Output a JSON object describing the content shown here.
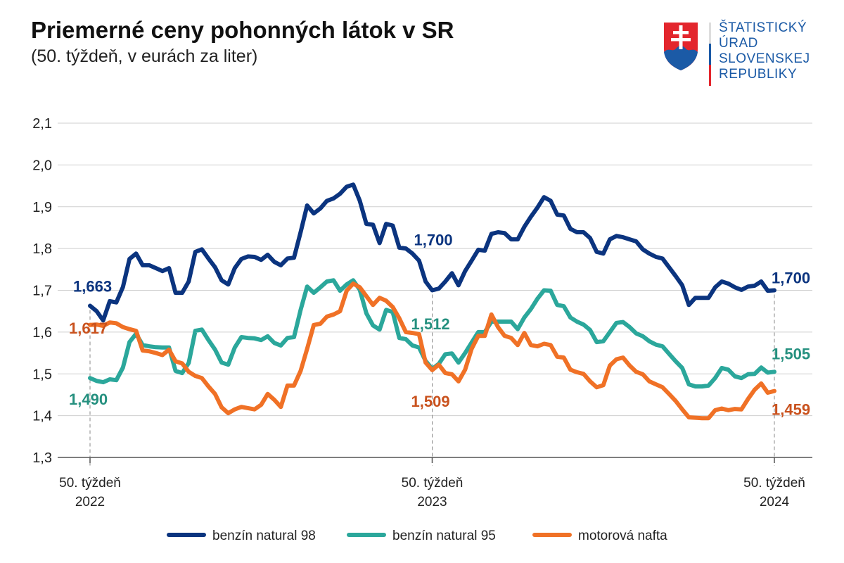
{
  "header": {
    "title": "Priemerné ceny pohonných látok v SR",
    "subtitle": "(50. týždeň, v eurách za liter)"
  },
  "logo": {
    "lines": [
      "ŠTATISTICKÝ",
      "ÚRAD",
      "SLOVENSKEJ",
      "REPUBLIKY"
    ],
    "colors": {
      "text": "#1b5aa6",
      "shield_red": "#e3262d",
      "shield_blue": "#1b5aa6"
    }
  },
  "chart_data": {
    "type": "line",
    "title": "Priemerné ceny pohonných látok v SR",
    "subtitle": "(50. týždeň, v eurách za liter)",
    "x_unit": "week",
    "x_start": "50. týždeň 2022",
    "x_end": "50. týždeň 2024",
    "x_ticks": [
      {
        "week_index": 0,
        "line1": "50. týždeň",
        "line2": "2022"
      },
      {
        "week_index": 52,
        "line1": "50. týždeň",
        "line2": "2023"
      },
      {
        "week_index": 104,
        "line1": "50. týždeň",
        "line2": "2024"
      }
    ],
    "ylim": [
      1.3,
      2.1
    ],
    "y_ticks": [
      "1,3",
      "1,4",
      "1,5",
      "1,6",
      "1,7",
      "1,8",
      "1,9",
      "2,0",
      "2,1"
    ],
    "grid": true,
    "legend_position": "bottom",
    "series": [
      {
        "name": "benzín natural 98",
        "color": "#0b347f",
        "label_color": "#0b347f",
        "annotations": [
          {
            "week_index": 0,
            "text": "1,663"
          },
          {
            "week_index": 52,
            "text": "1,700"
          },
          {
            "week_index": 104,
            "text": "1,700"
          }
        ],
        "values": [
          1.663,
          1.65,
          1.628,
          1.674,
          1.671,
          1.708,
          1.775,
          1.788,
          1.76,
          1.76,
          1.753,
          1.746,
          1.753,
          1.694,
          1.694,
          1.721,
          1.792,
          1.798,
          1.776,
          1.755,
          1.724,
          1.714,
          1.753,
          1.775,
          1.781,
          1.78,
          1.773,
          1.785,
          1.768,
          1.76,
          1.776,
          1.778,
          1.839,
          1.903,
          1.884,
          1.896,
          1.914,
          1.92,
          1.931,
          1.948,
          1.953,
          1.914,
          1.859,
          1.857,
          1.813,
          1.859,
          1.855,
          1.802,
          1.8,
          1.788,
          1.771,
          1.721,
          1.7,
          1.704,
          1.721,
          1.741,
          1.712,
          1.746,
          1.771,
          1.797,
          1.795,
          1.835,
          1.839,
          1.837,
          1.822,
          1.822,
          1.852,
          1.876,
          1.898,
          1.923,
          1.914,
          1.881,
          1.879,
          1.847,
          1.839,
          1.839,
          1.825,
          1.792,
          1.788,
          1.822,
          1.83,
          1.827,
          1.822,
          1.817,
          1.798,
          1.788,
          1.78,
          1.776,
          1.755,
          1.734,
          1.712,
          1.665,
          1.682,
          1.682,
          1.682,
          1.707,
          1.721,
          1.716,
          1.707,
          1.701,
          1.709,
          1.711,
          1.721,
          1.699,
          1.7
        ]
      },
      {
        "name": "benzín natural 95",
        "color": "#2ba79b",
        "label_color": "#25907f",
        "annotations": [
          {
            "week_index": 0,
            "text": "1,490"
          },
          {
            "week_index": 52,
            "text": "1,512"
          },
          {
            "week_index": 104,
            "text": "1,505"
          }
        ],
        "values": [
          1.49,
          1.483,
          1.48,
          1.487,
          1.485,
          1.515,
          1.576,
          1.596,
          1.569,
          1.566,
          1.564,
          1.563,
          1.563,
          1.507,
          1.502,
          1.526,
          1.603,
          1.606,
          1.581,
          1.558,
          1.527,
          1.522,
          1.563,
          1.588,
          1.586,
          1.585,
          1.581,
          1.59,
          1.574,
          1.568,
          1.586,
          1.588,
          1.653,
          1.709,
          1.694,
          1.707,
          1.721,
          1.724,
          1.699,
          1.714,
          1.724,
          1.701,
          1.645,
          1.616,
          1.606,
          1.653,
          1.648,
          1.586,
          1.583,
          1.568,
          1.563,
          1.531,
          1.512,
          1.524,
          1.547,
          1.549,
          1.527,
          1.55,
          1.575,
          1.6,
          1.6,
          1.625,
          1.625,
          1.625,
          1.625,
          1.607,
          1.635,
          1.655,
          1.68,
          1.7,
          1.699,
          1.665,
          1.662,
          1.635,
          1.625,
          1.618,
          1.605,
          1.576,
          1.578,
          1.6,
          1.622,
          1.624,
          1.612,
          1.597,
          1.59,
          1.578,
          1.57,
          1.566,
          1.548,
          1.53,
          1.514,
          1.475,
          1.47,
          1.47,
          1.472,
          1.49,
          1.514,
          1.51,
          1.494,
          1.49,
          1.499,
          1.5,
          1.515,
          1.503,
          1.505
        ]
      },
      {
        "name": "motorová nafta",
        "color": "#f07126",
        "label_color": "#c9521e",
        "annotations": [
          {
            "week_index": 0,
            "text": "1,617"
          },
          {
            "week_index": 52,
            "text": "1,509"
          },
          {
            "week_index": 104,
            "text": "1,459"
          }
        ],
        "values": [
          1.617,
          1.618,
          1.615,
          1.623,
          1.621,
          1.612,
          1.607,
          1.603,
          1.556,
          1.554,
          1.55,
          1.545,
          1.558,
          1.53,
          1.525,
          1.505,
          1.495,
          1.49,
          1.47,
          1.452,
          1.42,
          1.406,
          1.415,
          1.421,
          1.418,
          1.415,
          1.426,
          1.452,
          1.438,
          1.421,
          1.472,
          1.472,
          1.507,
          1.56,
          1.617,
          1.62,
          1.637,
          1.642,
          1.65,
          1.699,
          1.716,
          1.707,
          1.686,
          1.665,
          1.682,
          1.675,
          1.66,
          1.633,
          1.6,
          1.598,
          1.595,
          1.527,
          1.509,
          1.522,
          1.502,
          1.499,
          1.482,
          1.51,
          1.56,
          1.591,
          1.591,
          1.642,
          1.612,
          1.591,
          1.586,
          1.569,
          1.598,
          1.569,
          1.566,
          1.572,
          1.569,
          1.541,
          1.539,
          1.51,
          1.504,
          1.5,
          1.482,
          1.468,
          1.473,
          1.52,
          1.535,
          1.539,
          1.52,
          1.505,
          1.499,
          1.482,
          1.475,
          1.468,
          1.452,
          1.435,
          1.415,
          1.396,
          1.395,
          1.394,
          1.394,
          1.413,
          1.417,
          1.413,
          1.416,
          1.415,
          1.44,
          1.462,
          1.477,
          1.455,
          1.459
        ]
      }
    ]
  }
}
